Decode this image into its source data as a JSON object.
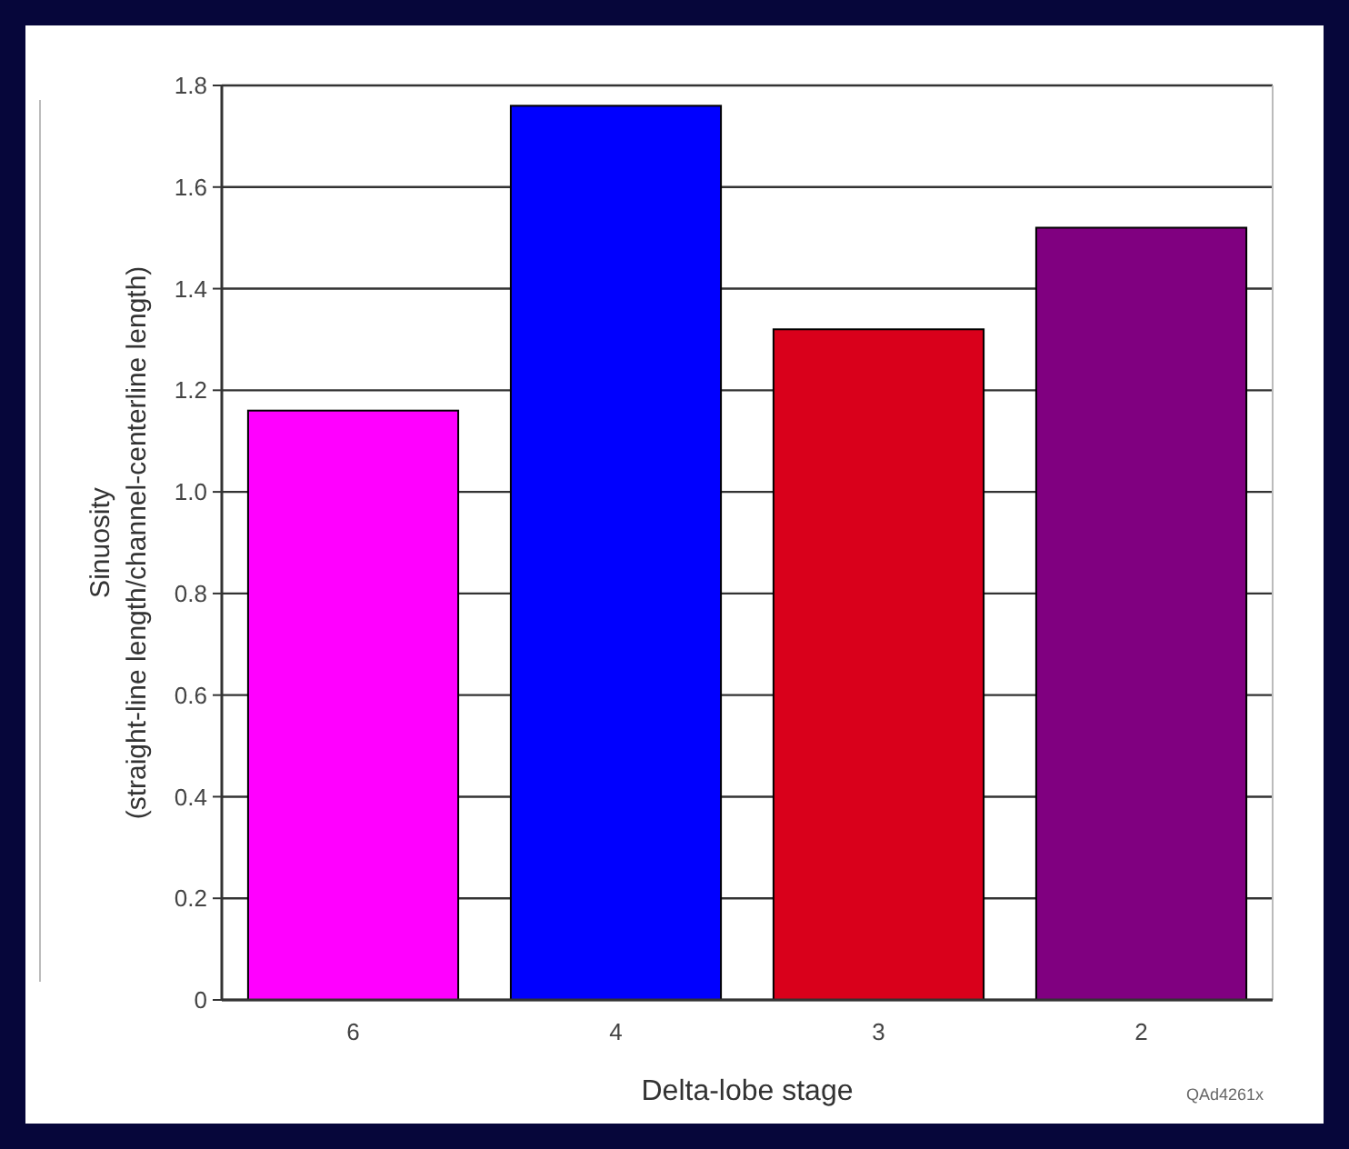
{
  "chart_data": {
    "type": "bar",
    "xlabel": "Delta-lobe stage",
    "ylabel": "Sinuosity\n(straight-line length/channel-centerline length)",
    "categories": [
      "6",
      "4",
      "3",
      "2"
    ],
    "values": [
      1.16,
      1.76,
      1.32,
      1.52
    ],
    "colors": [
      "#ff00ff",
      "#0000ff",
      "#d9001b",
      "#800080"
    ],
    "ylim": [
      0,
      1.8
    ],
    "yticks": [
      0,
      {
        "value": 0.2,
        "label": "0.2"
      },
      {
        "value": 0.4,
        "label": "0.4"
      },
      {
        "value": 0.6,
        "label": "0.6"
      },
      {
        "value": 0.8,
        "label": "0.8"
      },
      {
        "value": 1.0,
        "label": "1.0"
      },
      {
        "value": 1.2,
        "label": "1.2"
      },
      {
        "value": 1.4,
        "label": "1.4"
      },
      {
        "value": 1.6,
        "label": "1.6"
      },
      {
        "value": 1.8,
        "label": "1.8"
      }
    ],
    "grid": "y",
    "annotations": [
      "QAd4261x"
    ]
  }
}
